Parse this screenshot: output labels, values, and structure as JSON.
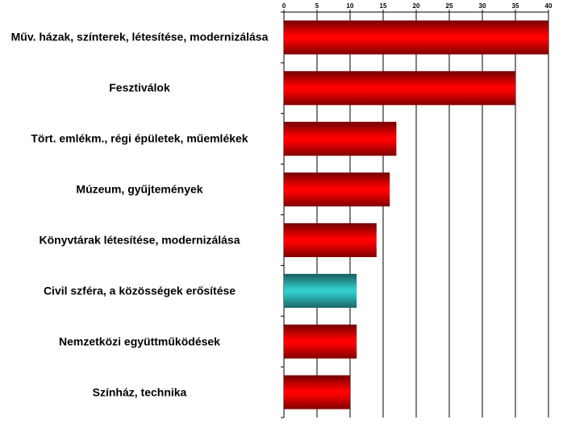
{
  "chart_data": {
    "type": "bar",
    "orientation": "horizontal",
    "categories": [
      "Műv. házak, színterek, létesítése, modernizálása",
      "Fesztiválok",
      "Tört. emlékm., régi épületek, műemlékek",
      "Múzeum, gyűjtemények",
      "Könyvtárak létesítése, modernizálása",
      "Civil szféra, a közösségek erősítése",
      "Nemzetközi együttműködések",
      "Színház, technika"
    ],
    "values": [
      40,
      35,
      17,
      16,
      14,
      11,
      11,
      10
    ],
    "colors": [
      "#ff0000",
      "#ff0000",
      "#ff0000",
      "#ff0000",
      "#ff0000",
      "#33cccc",
      "#ff0000",
      "#ff0000"
    ],
    "xlim": [
      0,
      40
    ],
    "xticks": [
      0,
      5,
      10,
      15,
      20,
      25,
      30,
      35,
      40
    ],
    "grid": true
  }
}
